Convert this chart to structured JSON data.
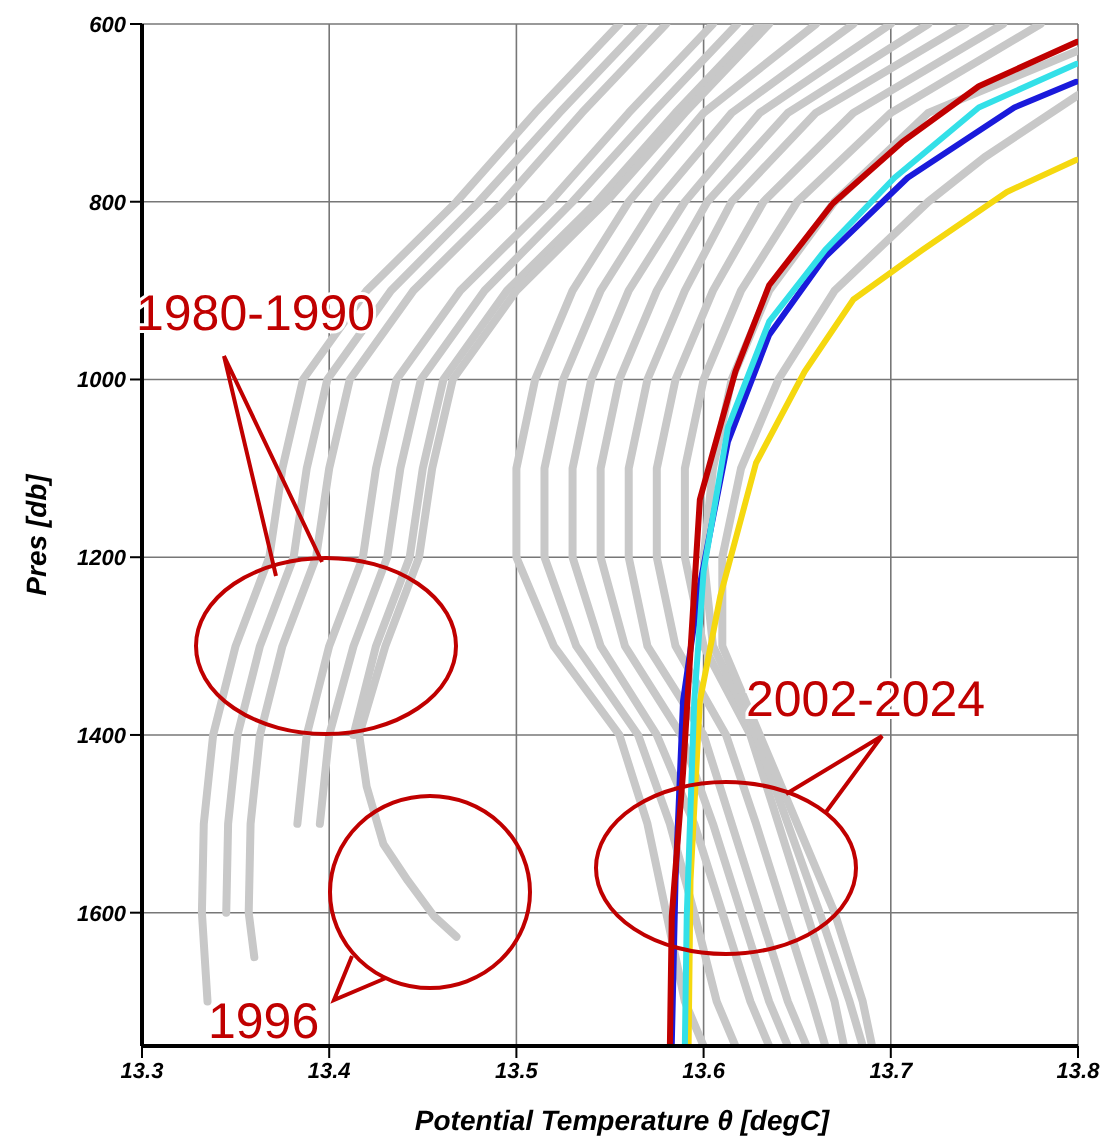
{
  "chart_data": {
    "type": "line",
    "xlabel": "Potential Temperature θ [degC]",
    "ylabel": "Pres [db]",
    "xlim": [
      13.3,
      13.8
    ],
    "xticks": [
      13.3,
      13.4,
      13.5,
      13.6,
      13.7,
      13.8
    ],
    "ylim": [
      1750,
      600
    ],
    "yticks": [
      600,
      800,
      1000,
      1200,
      1400,
      1600
    ],
    "grid": true,
    "annotations": [
      "1980-1990",
      "1996",
      "2002-2024"
    ],
    "series": [
      {
        "color": "#c8c8c8",
        "x": [
          13.555,
          13.51,
          13.468,
          13.42,
          13.386,
          13.375,
          13.368,
          13.35,
          13.338,
          13.333,
          13.332,
          13.335
        ],
        "values": [
          600,
          700,
          800,
          900,
          1000,
          1100,
          1200,
          1300,
          1400,
          1500,
          1600,
          1700
        ]
      },
      {
        "color": "#c8c8c8",
        "x": [
          13.568,
          13.523,
          13.48,
          13.433,
          13.399,
          13.388,
          13.381,
          13.363,
          13.351,
          13.346,
          13.345
        ],
        "values": [
          600,
          700,
          800,
          900,
          1000,
          1100,
          1200,
          1300,
          1400,
          1500,
          1600
        ]
      },
      {
        "color": "#c8c8c8",
        "x": [
          13.58,
          13.535,
          13.493,
          13.445,
          13.411,
          13.4,
          13.393,
          13.375,
          13.363,
          13.358,
          13.357,
          13.36
        ],
        "values": [
          600,
          700,
          800,
          900,
          1000,
          1100,
          1200,
          1300,
          1400,
          1500,
          1600,
          1650
        ]
      },
      {
        "color": "#c8c8c8",
        "x": [
          13.605,
          13.56,
          13.518,
          13.47,
          13.436,
          13.425,
          13.418,
          13.4,
          13.388,
          13.383
        ],
        "values": [
          600,
          700,
          800,
          900,
          1000,
          1100,
          1200,
          1300,
          1400,
          1500
        ]
      },
      {
        "color": "#c8c8c8",
        "x": [
          13.618,
          13.573,
          13.53,
          13.483,
          13.449,
          13.438,
          13.431,
          13.413,
          13.4,
          13.395
        ],
        "values": [
          600,
          700,
          800,
          900,
          1000,
          1100,
          1200,
          1300,
          1400,
          1500
        ]
      },
      {
        "color": "#c8c8c8",
        "x": [
          13.63,
          13.585,
          13.543,
          13.495,
          13.461,
          13.45,
          13.443,
          13.425,
          13.413
        ],
        "values": [
          600,
          700,
          800,
          900,
          1000,
          1100,
          1200,
          1300,
          1400
        ]
      },
      {
        "color": "#c8c8c8",
        "x": [
          13.635,
          13.59,
          13.548,
          13.5,
          13.466,
          13.455,
          13.448,
          13.43,
          13.416,
          13.42,
          13.429,
          13.442,
          13.456,
          13.468
        ],
        "values": [
          600,
          700,
          800,
          900,
          1000,
          1100,
          1200,
          1300,
          1400,
          1458,
          1523,
          1564,
          1604,
          1627
        ]
      },
      {
        "color": "#c8c8c8",
        "x": [
          13.66,
          13.6,
          13.56,
          13.53,
          13.51,
          13.5,
          13.5,
          13.52,
          13.555,
          13.57,
          13.58,
          13.59,
          13.6
        ],
        "values": [
          600,
          700,
          800,
          900,
          1000,
          1100,
          1200,
          1300,
          1400,
          1500,
          1600,
          1700,
          1750
        ]
      },
      {
        "color": "#c8c8c8",
        "x": [
          13.68,
          13.615,
          13.575,
          13.545,
          13.525,
          13.515,
          13.515,
          13.532,
          13.565,
          13.582,
          13.595,
          13.607,
          13.617
        ],
        "values": [
          600,
          700,
          800,
          900,
          1000,
          1100,
          1200,
          1300,
          1400,
          1500,
          1600,
          1700,
          1750
        ]
      },
      {
        "color": "#c8c8c8",
        "x": [
          13.7,
          13.63,
          13.59,
          13.56,
          13.54,
          13.53,
          13.53,
          13.545,
          13.575,
          13.595,
          13.61,
          13.625,
          13.635
        ],
        "values": [
          600,
          700,
          800,
          900,
          1000,
          1100,
          1200,
          1300,
          1400,
          1500,
          1600,
          1700,
          1750
        ]
      },
      {
        "color": "#c8c8c8",
        "x": [
          13.72,
          13.645,
          13.602,
          13.575,
          13.555,
          13.545,
          13.545,
          13.558,
          13.588,
          13.605,
          13.62,
          13.635,
          13.645
        ],
        "values": [
          600,
          700,
          800,
          900,
          1000,
          1100,
          1200,
          1300,
          1400,
          1500,
          1600,
          1700,
          1750
        ]
      },
      {
        "color": "#c8c8c8",
        "x": [
          13.74,
          13.66,
          13.615,
          13.59,
          13.57,
          13.56,
          13.56,
          13.57,
          13.6,
          13.615,
          13.63,
          13.645,
          13.655
        ],
        "values": [
          600,
          700,
          800,
          900,
          1000,
          1100,
          1200,
          1300,
          1400,
          1500,
          1600,
          1700,
          1750
        ]
      },
      {
        "color": "#c8c8c8",
        "x": [
          13.76,
          13.68,
          13.632,
          13.605,
          13.585,
          13.575,
          13.575,
          13.585,
          13.612,
          13.628,
          13.643,
          13.658,
          13.665
        ],
        "values": [
          600,
          700,
          800,
          900,
          1000,
          1100,
          1200,
          1300,
          1400,
          1500,
          1600,
          1700,
          1750
        ]
      },
      {
        "color": "#c8c8c8",
        "x": [
          13.78,
          13.7,
          13.65,
          13.62,
          13.6,
          13.59,
          13.59,
          13.6,
          13.625,
          13.64,
          13.655,
          13.67,
          13.675
        ],
        "values": [
          600,
          700,
          800,
          900,
          1000,
          1100,
          1200,
          1300,
          1400,
          1500,
          1600,
          1700,
          1750
        ]
      },
      {
        "color": "#c8c8c8",
        "x": [
          13.8,
          13.72,
          13.67,
          13.635,
          13.615,
          13.605,
          13.6,
          13.605,
          13.628,
          13.645,
          13.662,
          13.678,
          13.685
        ],
        "values": [
          630,
          700,
          800,
          900,
          1000,
          1100,
          1200,
          1300,
          1400,
          1500,
          1600,
          1700,
          1750
        ]
      },
      {
        "color": "#c8c8c8",
        "x": [
          13.8,
          13.75,
          13.72,
          13.67,
          13.64,
          13.62,
          13.61,
          13.61,
          13.63,
          13.65,
          13.67,
          13.685,
          13.69
        ],
        "values": [
          680,
          750,
          800,
          900,
          1000,
          1100,
          1200,
          1300,
          1400,
          1500,
          1600,
          1700,
          1750
        ]
      },
      {
        "color": "#f5d80f",
        "x": [
          13.799,
          13.762,
          13.717,
          13.68,
          13.654,
          13.628,
          13.609,
          13.598,
          13.593,
          13.592
        ],
        "values": [
          753,
          789,
          854,
          910,
          991,
          1094,
          1243,
          1362,
          1564,
          1748
        ]
      },
      {
        "color": "#1a1adb",
        "x": [
          13.799,
          13.766,
          13.709,
          13.665,
          13.635,
          13.613,
          13.598,
          13.589,
          13.585,
          13.583
        ],
        "values": [
          665,
          694,
          773,
          862,
          950,
          1070,
          1231,
          1362,
          1564,
          1748
        ]
      },
      {
        "color": "#33e0e8",
        "x": [
          13.799,
          13.747,
          13.702,
          13.665,
          13.635,
          13.613,
          13.6,
          13.595,
          13.591,
          13.59
        ],
        "values": [
          645,
          694,
          773,
          854,
          935,
          1054,
          1216,
          1362,
          1604,
          1748
        ]
      },
      {
        "color": "#c00000",
        "x": [
          13.7995,
          13.747,
          13.706,
          13.669,
          13.635,
          13.617,
          13.598,
          13.596,
          13.589,
          13.583,
          13.582
        ],
        "values": [
          620,
          670,
          733,
          802,
          894,
          991,
          1135,
          1202,
          1443,
          1604,
          1748
        ]
      }
    ]
  }
}
